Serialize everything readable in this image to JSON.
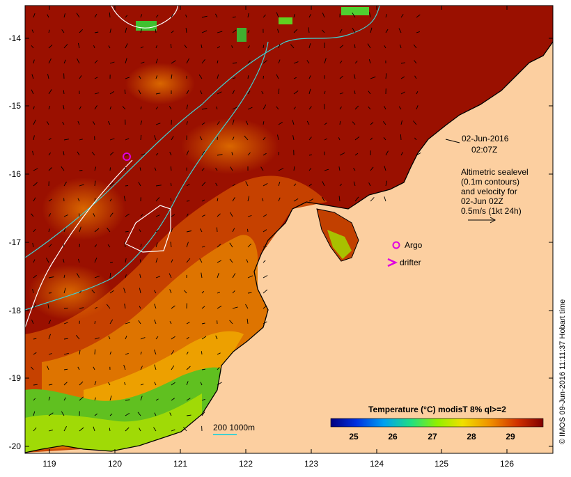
{
  "map": {
    "date_line1": "02-Jun-2016",
    "date_line2": "02:07Z",
    "altimetry_lines": [
      "Altimetric sealevel",
      "(0.1m contours)",
      "and velocity for",
      "02-Jun 02Z",
      "0.5m/s (1kt 24h)"
    ],
    "argo_label": "Argo",
    "drifter_label": "drifter",
    "scale_label": "200  1000m",
    "credit": "© IMOS 09-Jun-2016 11:11:37 Hobart time",
    "colorbar_title": "Temperature (°C) modisT 8% ql>=2",
    "colorbar_ticks": [
      "25",
      "26",
      "27",
      "28",
      "29"
    ],
    "lat_ticks": [
      "-14",
      "-15",
      "-16",
      "-17",
      "-18",
      "-19",
      "-20"
    ],
    "lon_ticks": [
      "119",
      "120",
      "121",
      "122",
      "123",
      "124",
      "125",
      "126"
    ],
    "colors": {
      "land": "#fccfa0",
      "sea_warm": "#9a1000",
      "sea_mid": "#d85a00",
      "sea_cool": "#f0a000",
      "green": "#50c020",
      "argo": "#e000e0",
      "contour": "#40d0d0"
    }
  }
}
